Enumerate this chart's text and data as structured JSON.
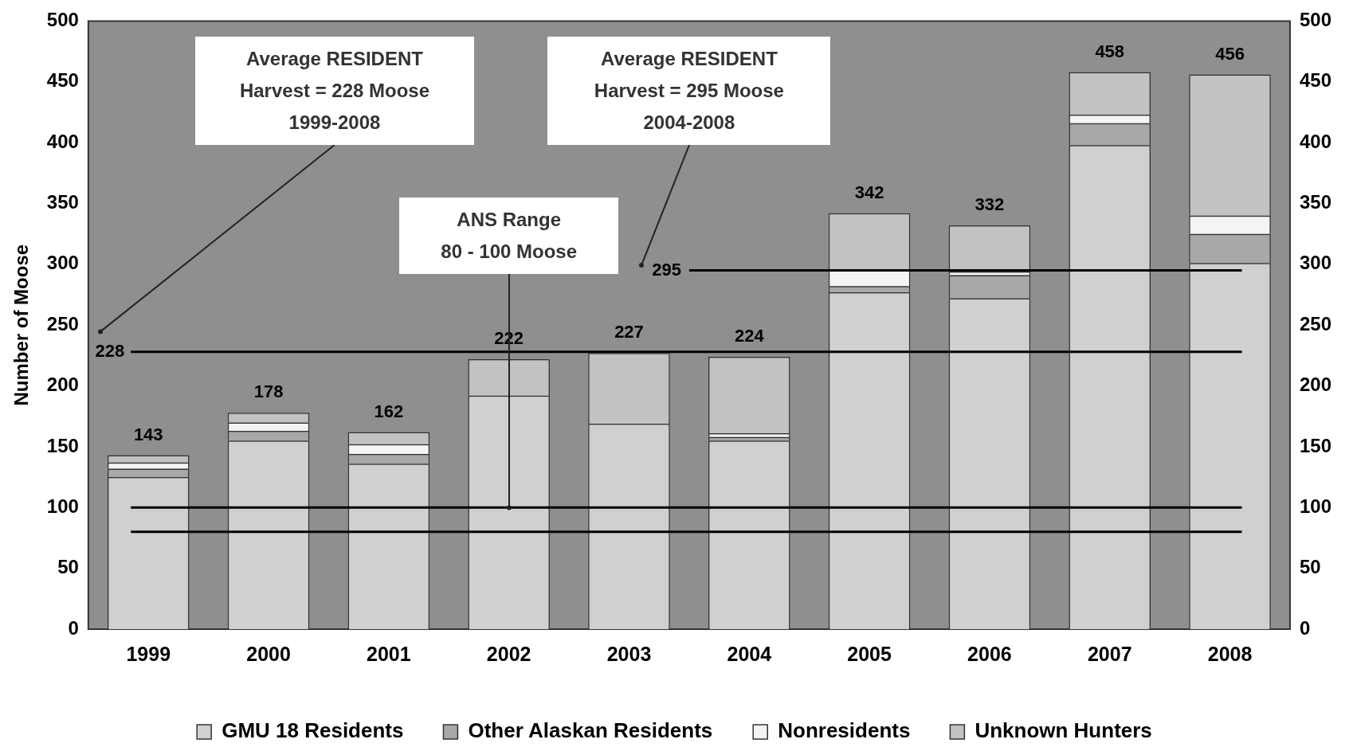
{
  "chart_data": {
    "type": "bar",
    "stacked": true,
    "categories": [
      "1999",
      "2000",
      "2001",
      "2002",
      "2003",
      "2004",
      "2005",
      "2006",
      "2007",
      "2008"
    ],
    "series": [
      {
        "name": "GMU 18 Residents",
        "color": "#d0d0d0",
        "values": [
          125,
          155,
          136,
          192,
          169,
          155,
          277,
          272,
          398,
          301
        ]
      },
      {
        "name": "Other Alaskan Residents",
        "color": "#a8a8a8",
        "values": [
          7,
          8,
          8,
          0,
          0,
          3,
          5,
          19,
          18,
          24
        ]
      },
      {
        "name": "Nonresidents",
        "color": "#f4f4f4",
        "values": [
          5,
          7,
          8,
          0,
          0,
          3,
          14,
          3,
          7,
          15
        ]
      },
      {
        "name": "Unknown Hunters",
        "color": "#c2c2c2",
        "values": [
          6,
          8,
          10,
          30,
          58,
          63,
          46,
          38,
          35,
          116
        ]
      }
    ],
    "totals": [
      "143",
      "178",
      "162",
      "222",
      "227",
      "224",
      "342",
      "332",
      "458",
      "456"
    ],
    "ylabel": "Number of Moose",
    "ylim": [
      0,
      500
    ],
    "yticks": [
      0,
      50,
      100,
      150,
      200,
      250,
      300,
      350,
      400,
      450,
      500
    ],
    "y2lim": [
      0,
      500
    ],
    "y2ticks": [
      0,
      50,
      100,
      150,
      200,
      250,
      300,
      350,
      400,
      450,
      500
    ],
    "ref_lines": [
      {
        "axis": "y",
        "value": 228,
        "label": "228",
        "color": "#000000"
      },
      {
        "axis": "y",
        "value": 295,
        "label": "295",
        "color": "#000000"
      },
      {
        "axis": "y",
        "value": 100,
        "color": "#000000"
      },
      {
        "axis": "y",
        "value": 80,
        "color": "#000000"
      }
    ],
    "annotations": [
      "Average RESIDENT\nHarvest = 228 Moose\n1999-2008",
      "Average RESIDENT\nHarvest = 295 Moose\n2004-2008",
      {
        "text": "ANS Range\n80 - 100 Moose",
        "x": "2002",
        "y": 100
      }
    ],
    "legend": "bottom"
  }
}
